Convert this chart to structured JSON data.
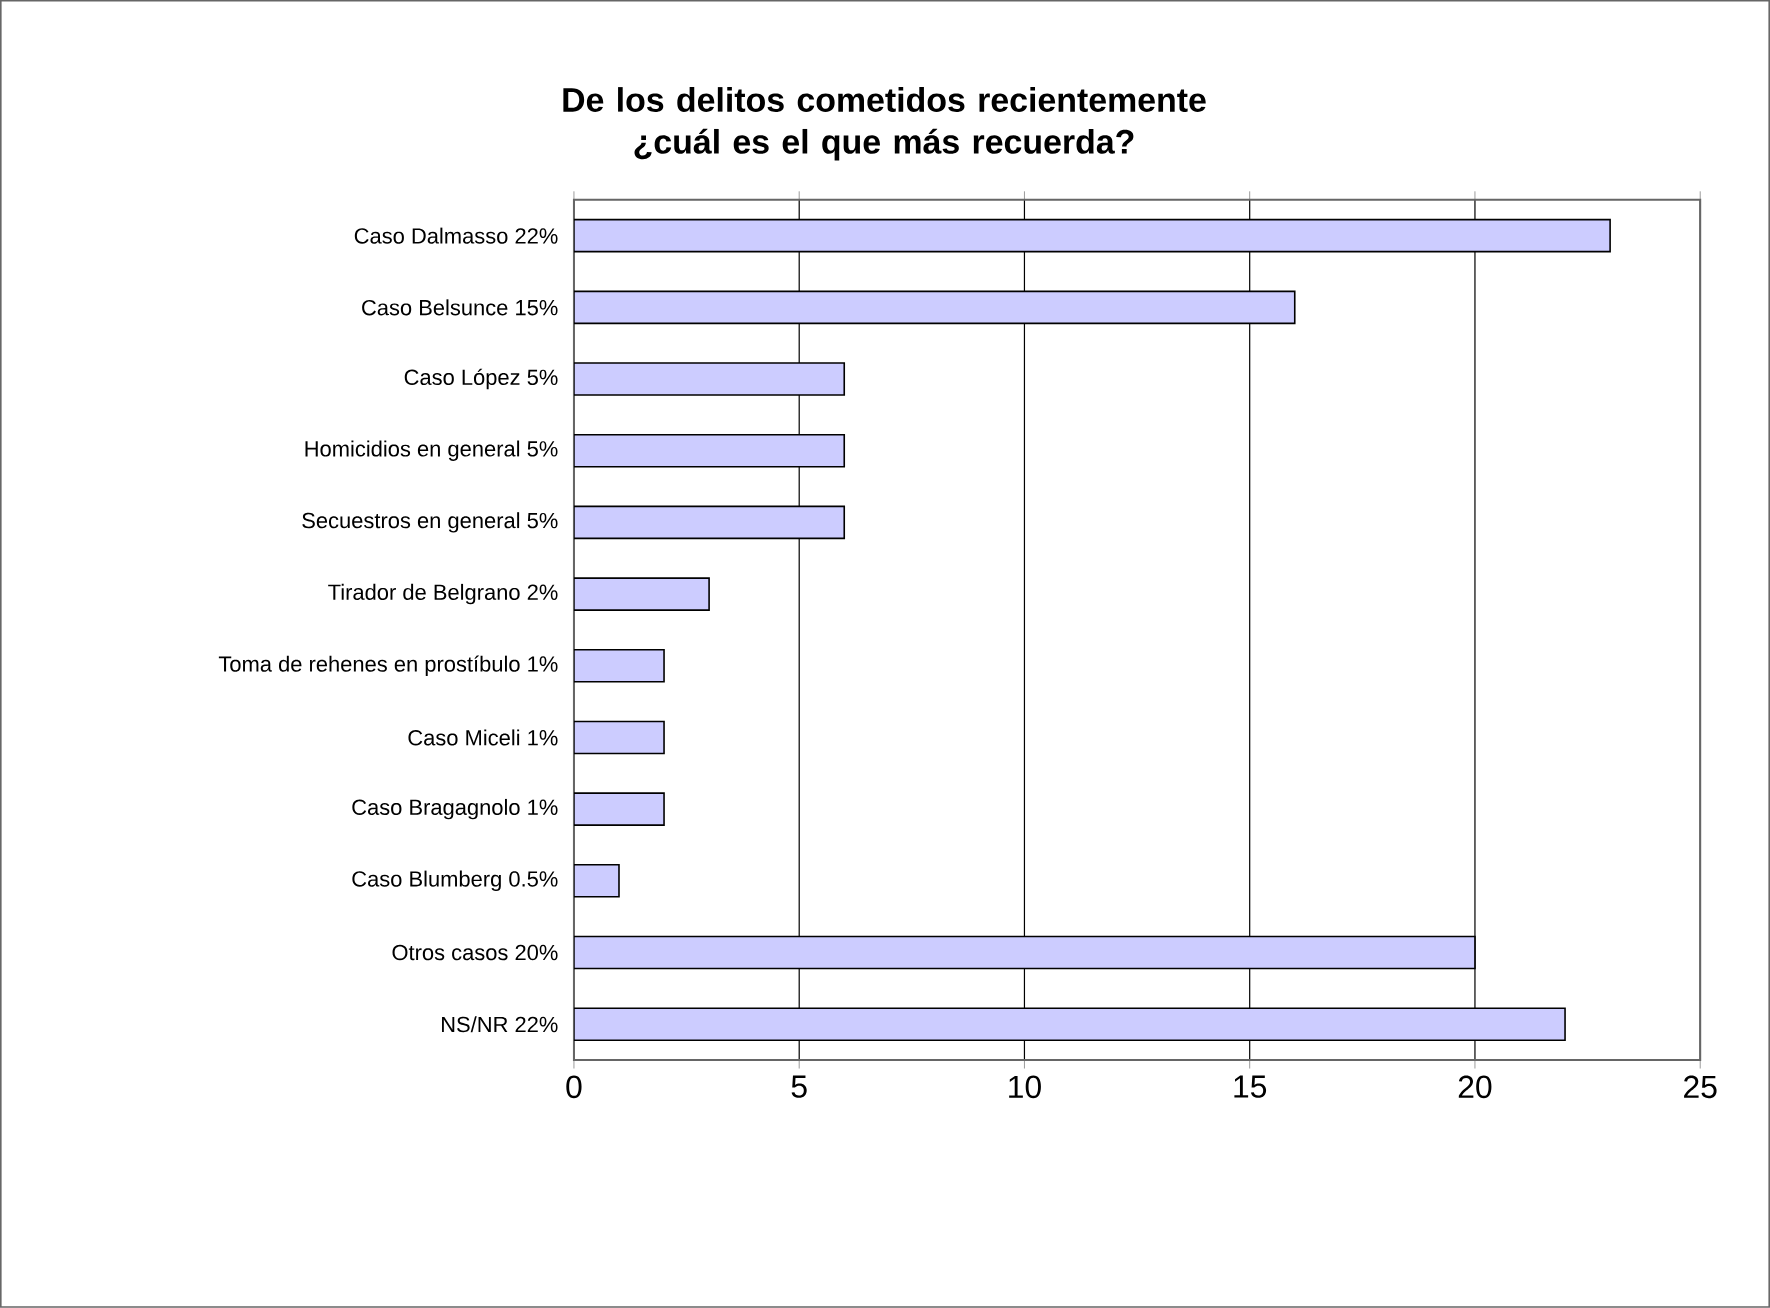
{
  "chart_data": {
    "type": "bar",
    "orientation": "horizontal",
    "title": "De los delitos cometidos recientemente ¿cuál es el que más recuerda?",
    "categories": [
      "Caso Dalmasso 22%",
      "Caso Belsunce 15%",
      "Caso López 5%",
      "Homicidios en general 5%",
      "Secuestros en general 5%",
      "Tirador de Belgrano 2%",
      "Toma de rehenes en prostíbulo 1%",
      "Caso Miceli 1%",
      "Caso Bragagnolo 1%",
      "Caso Blumberg 0.5%",
      "Otros casos 20%",
      "NS/NR 22%"
    ],
    "values": [
      23,
      16,
      6,
      6,
      6,
      3,
      2,
      2,
      2,
      1,
      20,
      22
    ],
    "color": "#ccccff",
    "xlim": [
      0,
      25
    ],
    "xticks": [
      0,
      5,
      10,
      15,
      20,
      25
    ],
    "grid": "x"
  }
}
